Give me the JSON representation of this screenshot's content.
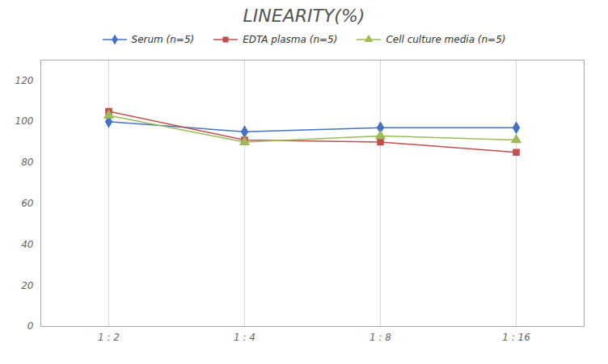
{
  "chart_data": {
    "type": "line",
    "title": "LINEARITY(%)",
    "categories": [
      "1 : 2",
      "1 : 4",
      "1 : 8",
      "1 : 16"
    ],
    "series": [
      {
        "name": "Serum (n=5)",
        "color": "#4472C4",
        "marker": "diamond",
        "values": [
          100,
          95,
          97,
          97
        ]
      },
      {
        "name": "EDTA plasma (n=5)",
        "color": "#C0504D",
        "marker": "square",
        "values": [
          105,
          91,
          90,
          85
        ]
      },
      {
        "name": "Cell culture media (n=5)",
        "color": "#9BBB59",
        "marker": "triangle",
        "values": [
          103,
          90,
          93,
          91
        ]
      }
    ],
    "ylim": [
      0,
      130
    ],
    "yticks": [
      0,
      20,
      40,
      60,
      80,
      100,
      120
    ],
    "grid": "x",
    "legend": "top"
  }
}
